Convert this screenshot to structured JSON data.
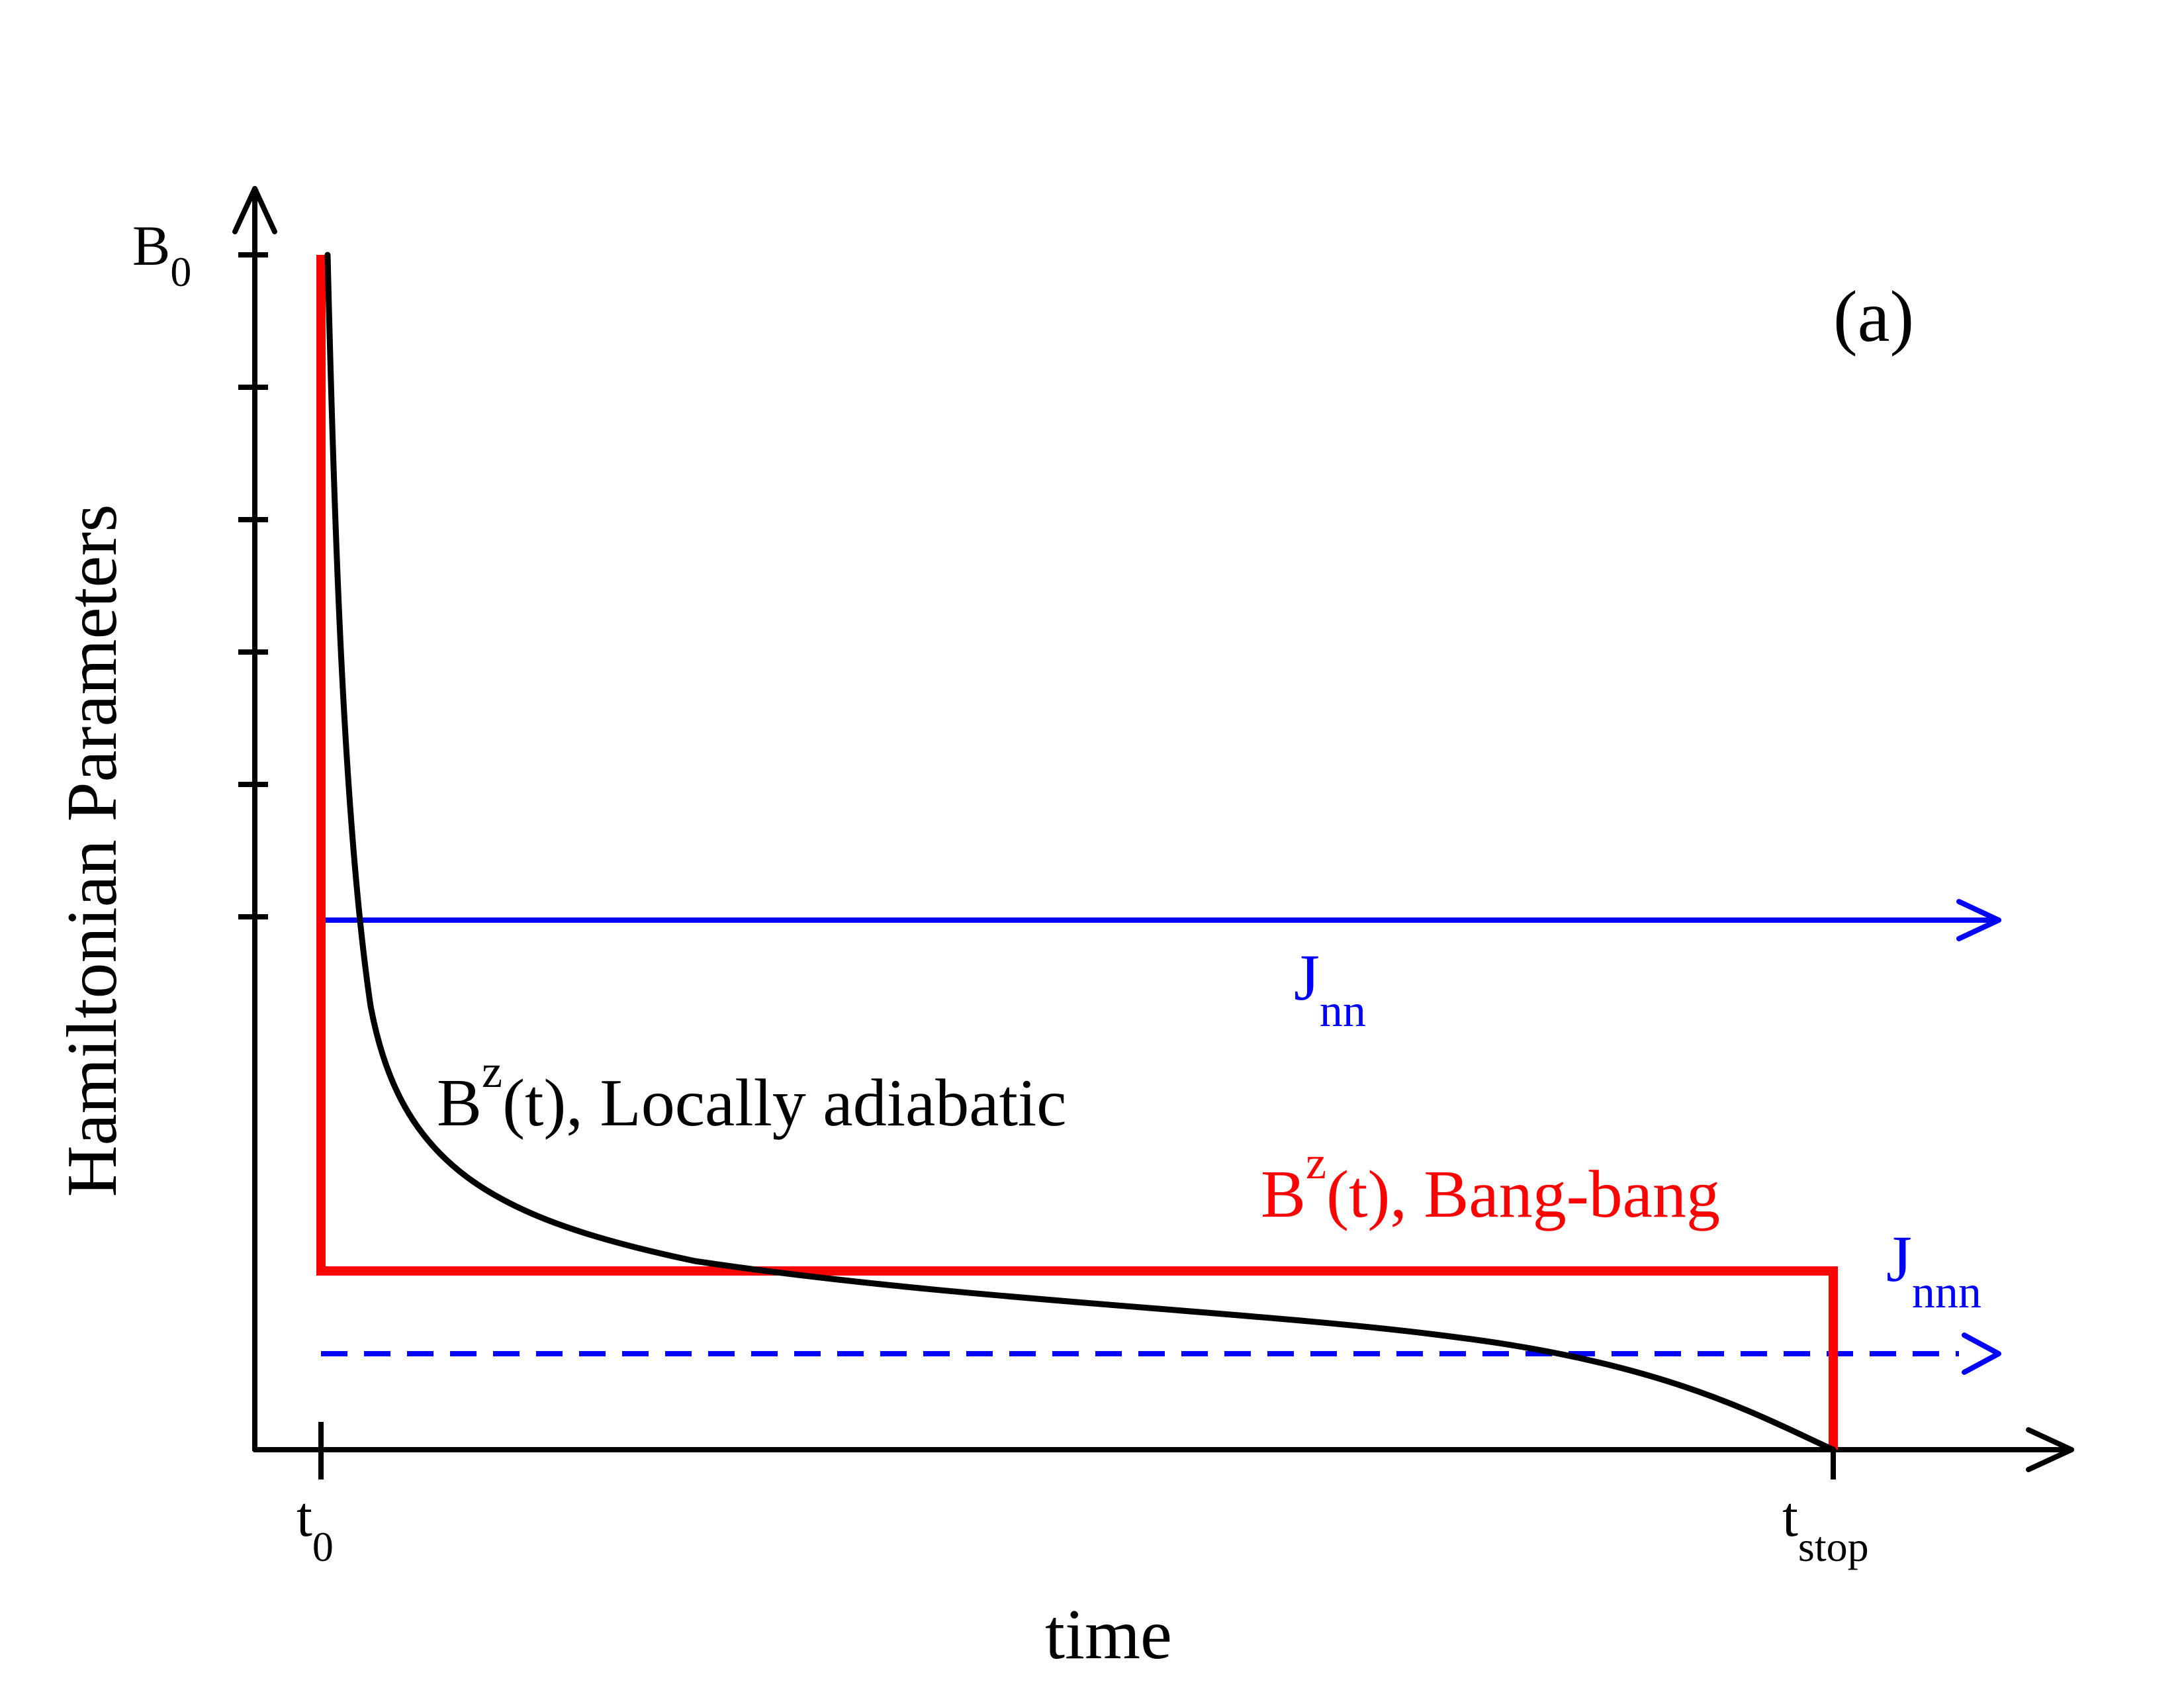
{
  "panel_label": "(a)",
  "axes": {
    "y_title": "Hamiltonian Parameters",
    "x_title": "time",
    "y_top_label": {
      "base": "B",
      "sub": "0"
    },
    "x_ticks": [
      {
        "base": "t",
        "sub": "0"
      },
      {
        "base": "t",
        "sub": "stop"
      }
    ]
  },
  "labels": {
    "locally_adiabatic": {
      "base": "B",
      "sup": "z",
      "rest": "(t), Locally adiabatic"
    },
    "bang_bang": {
      "base": "B",
      "sup": "z",
      "rest": "(t), Bang-bang"
    },
    "j_nn": {
      "base": "J",
      "sub": "nn"
    },
    "j_nnn": {
      "base": "J",
      "sub": "nnn"
    }
  },
  "colors": {
    "axis": "#000000",
    "adiabatic": "#000000",
    "bang_bang": "#ff0000",
    "coupling": "#0000ff"
  }
}
